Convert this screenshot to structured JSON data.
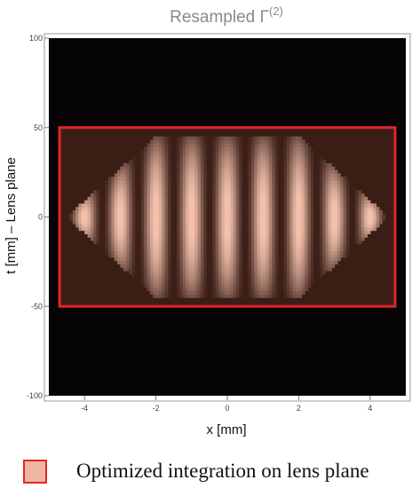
{
  "chart_data": {
    "type": "heatmap",
    "title": "Resampled Γ",
    "title_superscript": "(2)",
    "xlabel": "x [mm]",
    "ylabel": "t [mm] – Lens plane",
    "xlim": [
      -5,
      5
    ],
    "ylim": [
      -100,
      100
    ],
    "x_ticks": [
      -4,
      -2,
      0,
      2,
      4
    ],
    "x_tick_labels": [
      "-4",
      "-2",
      "0",
      "2",
      "4"
    ],
    "y_ticks": [
      -100,
      -50,
      0,
      50,
      100
    ],
    "y_tick_labels": [
      "-100",
      "-50",
      "0",
      "50",
      "100"
    ],
    "background_color": "#060404",
    "fringe_color": "#f2c0ac",
    "fringe_period_x": 1.0,
    "fringe_peaks_x": [
      -4,
      -3,
      -2,
      -1,
      0,
      1,
      2,
      3,
      4
    ],
    "fringe_extent_t": [
      -45,
      45
    ],
    "highlight_region": {
      "x": [
        -4.7,
        4.7
      ],
      "t": [
        -50,
        50
      ],
      "edge_color": "#e0262b",
      "fill_color": "#3a1e16"
    }
  },
  "legend": {
    "label": "Optimized integration on lens plane",
    "swatch_fill": "#efb7a3",
    "swatch_edge": "#e0262b"
  }
}
